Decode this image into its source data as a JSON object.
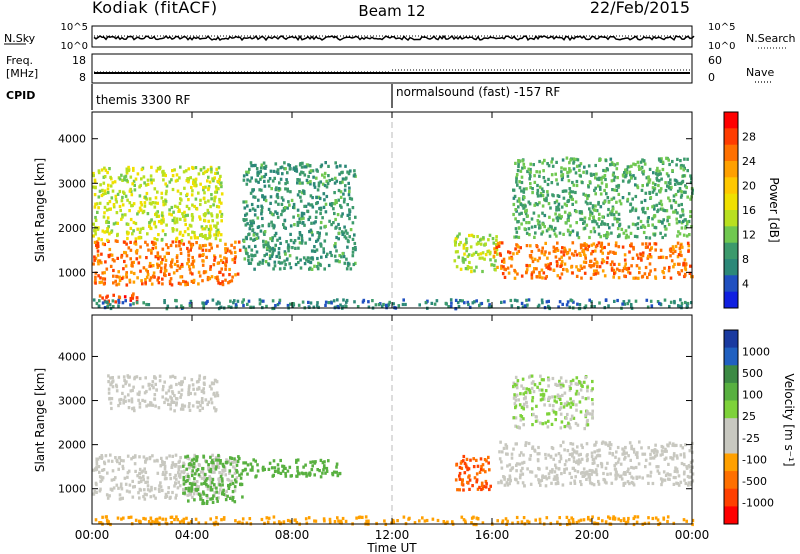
{
  "chart_data": {
    "type": "heatmap",
    "header": {
      "radar": "Kodiak (fitACF)",
      "beam": "Beam 12",
      "date": "22/Feb/2015"
    },
    "noise_panel": {
      "left_label": "N.Sky",
      "right_label": "N.Search",
      "left_ticks": [
        "10^5",
        "10^0"
      ],
      "right_ticks": [
        "10^5",
        "10^0"
      ]
    },
    "freq_panel": {
      "left_label_line1": "Freq.",
      "left_label_line2": "[MHz]",
      "right_label": "Nave",
      "left_ticks": [
        18,
        8
      ],
      "right_ticks": [
        60,
        0
      ]
    },
    "cpid_panel": {
      "label": "CPID",
      "modes": [
        {
          "start_hour": 0,
          "text": "themis 3300 RF"
        },
        {
          "start_hour": 12,
          "text": "normalsound (fast) -157 RF"
        }
      ]
    },
    "x_axis": {
      "label": "Time UT",
      "range_hours": [
        0,
        24
      ],
      "ticks": [
        "00:00",
        "04:00",
        "08:00",
        "12:00",
        "16:00",
        "20:00",
        "00:00"
      ]
    },
    "panels": [
      {
        "name": "power",
        "ylabel": "Slant Range [km]",
        "ylim": [
          200,
          4600
        ],
        "yticks": [
          1000,
          2000,
          3000,
          4000
        ],
        "colorbar_label": "Power [dB]",
        "colorbar_ticks": [
          "28",
          "24",
          "20",
          "16",
          "12",
          "8",
          "4"
        ],
        "colors": [
          "#ff0000",
          "#ff3c00",
          "#ff7000",
          "#ffa000",
          "#ffc800",
          "#f0e000",
          "#b8e020",
          "#70c850",
          "#3c9a6c",
          "#2c8878",
          "#2050c0",
          "#1020e0"
        ],
        "regions": [
          {
            "h0": 0.0,
            "h1": 5.9,
            "r0": 750,
            "r1": 1750,
            "value": 26
          },
          {
            "h0": 0.0,
            "h1": 5.2,
            "r0": 1750,
            "r1": 3400,
            "value": 15
          },
          {
            "h0": 0.2,
            "h1": 1.8,
            "r0": 350,
            "r1": 550,
            "value": 28
          },
          {
            "h0": 6.0,
            "h1": 10.5,
            "r0": 1100,
            "r1": 3500,
            "value": 8
          },
          {
            "h0": 14.4,
            "h1": 16.2,
            "r0": 1050,
            "r1": 1900,
            "value": 14
          },
          {
            "h0": 16.0,
            "h1": 24.0,
            "r0": 900,
            "r1": 1700,
            "value": 26
          },
          {
            "h0": 16.8,
            "h1": 24.0,
            "r0": 1800,
            "r1": 3600,
            "value": 10
          },
          {
            "h0": 0.0,
            "h1": 24.0,
            "r0": 220,
            "r1": 420,
            "value": 6
          }
        ]
      },
      {
        "name": "velocity",
        "ylabel": "Slant Range [km]",
        "ylim": [
          200,
          4600
        ],
        "yticks": [
          1000,
          2000,
          3000,
          4000
        ],
        "colorbar_label": "Velocity [m s⁻¹]",
        "colorbar_ticks": [
          "1000",
          "500",
          "100",
          "25",
          "-25",
          "-100",
          "-500",
          "-1000"
        ],
        "colors": [
          "#1a3aa0",
          "#2060c0",
          "#3c8a44",
          "#58b040",
          "#7ed23a",
          "#c8c8c0",
          "#c8c8c0",
          "#ffa000",
          "#ff7000",
          "#ff4000",
          "#ff0000"
        ],
        "regions": [
          {
            "h0": 0.0,
            "h1": 5.8,
            "r0": 800,
            "r1": 1800,
            "value": 0
          },
          {
            "h0": 3.6,
            "h1": 6.0,
            "r0": 700,
            "r1": 1800,
            "value": 120
          },
          {
            "h0": 0.6,
            "h1": 5.0,
            "r0": 2800,
            "r1": 3600,
            "value": 0
          },
          {
            "h0": 6.0,
            "h1": 10.0,
            "r0": 1300,
            "r1": 1700,
            "value": 150
          },
          {
            "h0": 14.5,
            "h1": 15.9,
            "r0": 1000,
            "r1": 1800,
            "value": -300
          },
          {
            "h0": 16.2,
            "h1": 24.0,
            "r0": 1100,
            "r1": 2100,
            "value": 0
          },
          {
            "h0": 16.8,
            "h1": 20.0,
            "r0": 2400,
            "r1": 3600,
            "value": 60
          },
          {
            "h0": 0.0,
            "h1": 24.0,
            "r0": 220,
            "r1": 400,
            "value": -50
          }
        ]
      }
    ]
  }
}
